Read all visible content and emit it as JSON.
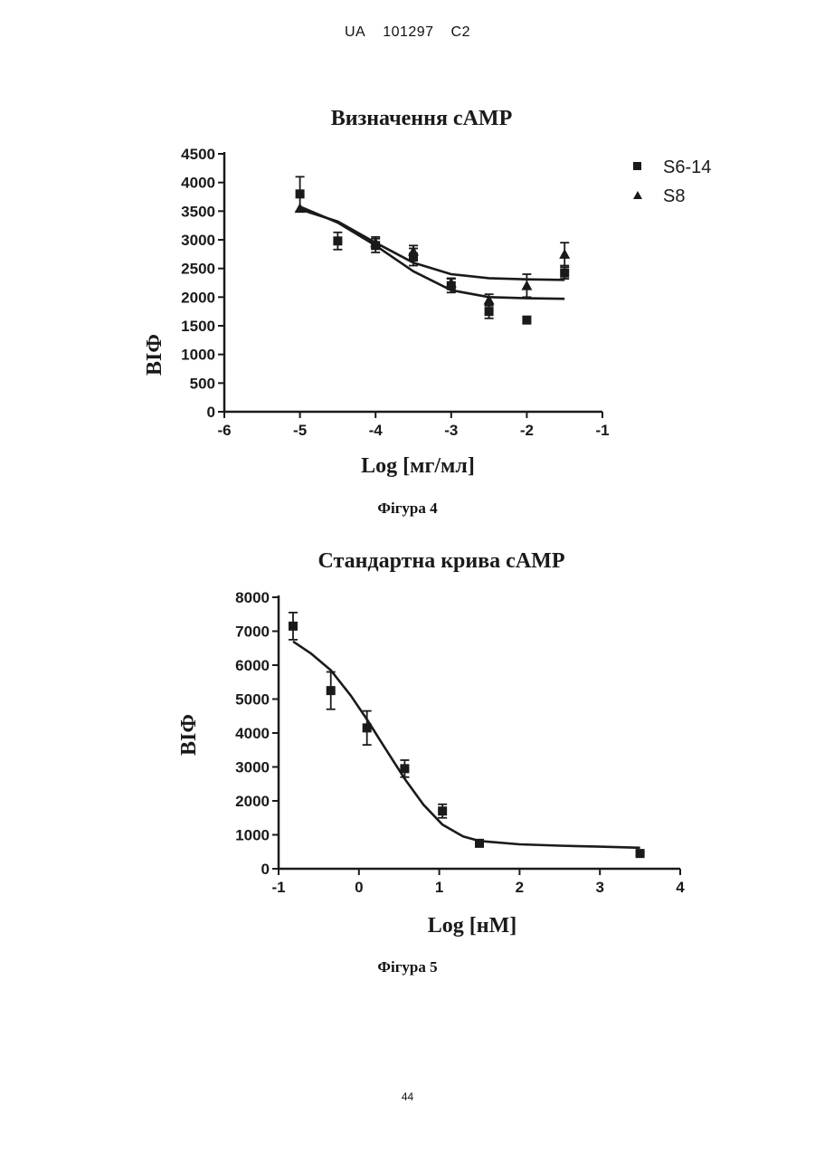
{
  "header": {
    "country": "UA",
    "number": "101297",
    "kind": "C2"
  },
  "page_number": "44",
  "figures": [
    {
      "caption": "Фігура 4"
    },
    {
      "caption": "Фігура 5"
    }
  ],
  "chart_data": [
    {
      "type": "scatter",
      "title": "Визначення cAMP",
      "xlabel": "Log [мг/мл]",
      "ylabel": "ВІФ",
      "xlim": [
        -6,
        -1
      ],
      "ylim": [
        0,
        4500
      ],
      "xticks": [
        -6,
        -5,
        -4,
        -3,
        -2,
        -1
      ],
      "yticks": [
        0,
        500,
        1000,
        1500,
        2000,
        2500,
        3000,
        3500,
        4000,
        4500
      ],
      "legend_position": "top-right",
      "grid": false,
      "series": [
        {
          "name": "S6-14",
          "marker": "square",
          "points": [
            {
              "x": -5.0,
              "y": 3800,
              "err": 300
            },
            {
              "x": -4.5,
              "y": 2980,
              "err": 150
            },
            {
              "x": -4.0,
              "y": 2900,
              "err": 120
            },
            {
              "x": -3.5,
              "y": 2700,
              "err": 150
            },
            {
              "x": -3.0,
              "y": 2200,
              "err": 120
            },
            {
              "x": -2.5,
              "y": 1750,
              "err": 120
            },
            {
              "x": -2.0,
              "y": 1600,
              "err": 0
            },
            {
              "x": -1.5,
              "y": 2420,
              "err": 100
            }
          ],
          "curve": [
            {
              "x": -5.0,
              "y": 3580
            },
            {
              "x": -4.5,
              "y": 3300
            },
            {
              "x": -4.0,
              "y": 2900
            },
            {
              "x": -3.5,
              "y": 2450
            },
            {
              "x": -3.0,
              "y": 2120
            },
            {
              "x": -2.5,
              "y": 2000
            },
            {
              "x": -2.0,
              "y": 1980
            },
            {
              "x": -1.5,
              "y": 1970
            }
          ]
        },
        {
          "name": "S8",
          "marker": "triangle",
          "points": [
            {
              "x": -5.0,
              "y": 3550,
              "err": 0
            },
            {
              "x": -4.0,
              "y": 2950,
              "err": 100
            },
            {
              "x": -3.5,
              "y": 2800,
              "err": 100
            },
            {
              "x": -3.0,
              "y": 2250,
              "err": 80
            },
            {
              "x": -2.5,
              "y": 1950,
              "err": 100
            },
            {
              "x": -2.0,
              "y": 2200,
              "err": 200
            },
            {
              "x": -1.5,
              "y": 2750,
              "err": 200
            }
          ],
          "curve": [
            {
              "x": -5.0,
              "y": 3530
            },
            {
              "x": -4.5,
              "y": 3320
            },
            {
              "x": -4.0,
              "y": 2950
            },
            {
              "x": -3.5,
              "y": 2600
            },
            {
              "x": -3.0,
              "y": 2400
            },
            {
              "x": -2.5,
              "y": 2330
            },
            {
              "x": -2.0,
              "y": 2310
            },
            {
              "x": -1.5,
              "y": 2300
            }
          ]
        }
      ]
    },
    {
      "type": "scatter",
      "title": "Стандартна крива cAMP",
      "xlabel": "Log [нМ]",
      "ylabel": "ВІФ",
      "xlim": [
        -1,
        4
      ],
      "ylim": [
        0,
        8000
      ],
      "xticks": [
        -1,
        0,
        1,
        2,
        3,
        4
      ],
      "yticks": [
        0,
        1000,
        2000,
        3000,
        4000,
        5000,
        6000,
        7000,
        8000
      ],
      "grid": false,
      "series": [
        {
          "marker": "square",
          "points": [
            {
              "x": -0.82,
              "y": 7150,
              "err": 400
            },
            {
              "x": -0.35,
              "y": 5250,
              "err": 550
            },
            {
              "x": 0.1,
              "y": 4150,
              "err": 500
            },
            {
              "x": 0.57,
              "y": 2950,
              "err": 250
            },
            {
              "x": 1.04,
              "y": 1700,
              "err": 200
            },
            {
              "x": 1.5,
              "y": 750,
              "err": 80
            },
            {
              "x": 3.5,
              "y": 450,
              "err": 50
            }
          ],
          "curve": [
            {
              "x": -0.82,
              "y": 6700
            },
            {
              "x": -0.6,
              "y": 6350
            },
            {
              "x": -0.35,
              "y": 5850
            },
            {
              "x": -0.1,
              "y": 5100
            },
            {
              "x": 0.1,
              "y": 4400
            },
            {
              "x": 0.3,
              "y": 3650
            },
            {
              "x": 0.57,
              "y": 2650
            },
            {
              "x": 0.8,
              "y": 1900
            },
            {
              "x": 1.04,
              "y": 1300
            },
            {
              "x": 1.3,
              "y": 950
            },
            {
              "x": 1.5,
              "y": 820
            },
            {
              "x": 2.0,
              "y": 720
            },
            {
              "x": 2.5,
              "y": 680
            },
            {
              "x": 3.0,
              "y": 650
            },
            {
              "x": 3.5,
              "y": 620
            }
          ]
        }
      ]
    }
  ]
}
